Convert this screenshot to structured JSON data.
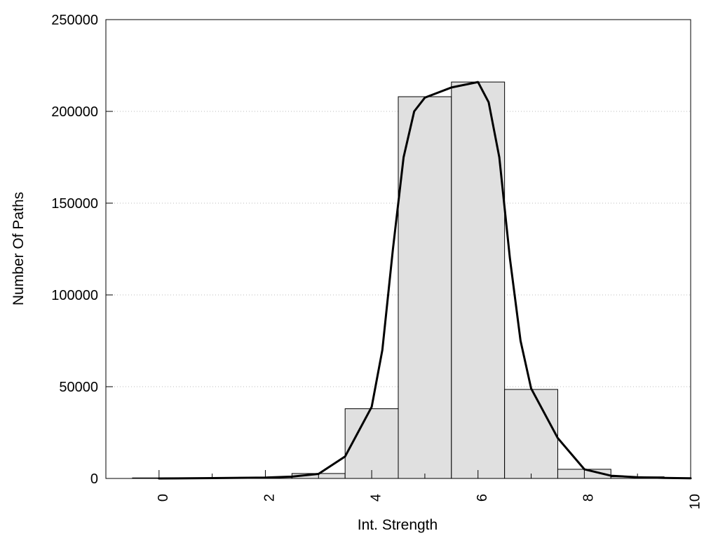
{
  "chart_data": {
    "type": "bar",
    "title": "",
    "xlabel": "Int. Strength",
    "ylabel": "Number Of Paths",
    "xlim": [
      -1,
      10
    ],
    "ylim": [
      0,
      250000
    ],
    "x_ticks": [
      0,
      2,
      4,
      6,
      8,
      10
    ],
    "y_ticks": [
      0,
      50000,
      100000,
      150000,
      200000,
      250000
    ],
    "grid": "horizontal-dotted",
    "legend": "none",
    "bars": {
      "x": [
        0,
        1,
        2,
        3,
        4,
        5,
        6,
        7,
        8,
        9
      ],
      "values": [
        300,
        300,
        600,
        2700,
        38000,
        208000,
        216000,
        48500,
        5000,
        900
      ],
      "width": 1,
      "fill": "#e0e0e0",
      "stroke": "#000000"
    },
    "curve": {
      "x": [
        0,
        1,
        2,
        2.5,
        3,
        3.5,
        4,
        4.2,
        4.4,
        4.6,
        4.8,
        5,
        5.5,
        6,
        6.2,
        6.4,
        6.6,
        6.8,
        7,
        7.5,
        8,
        8.5,
        9,
        9.5,
        10
      ],
      "values": [
        0,
        200,
        500,
        1000,
        2500,
        12000,
        39000,
        70000,
        125000,
        175000,
        200000,
        207500,
        213000,
        216000,
        205000,
        175000,
        120000,
        75000,
        49000,
        22000,
        5000,
        1500,
        700,
        300,
        100
      ],
      "stroke": "#000000"
    }
  }
}
